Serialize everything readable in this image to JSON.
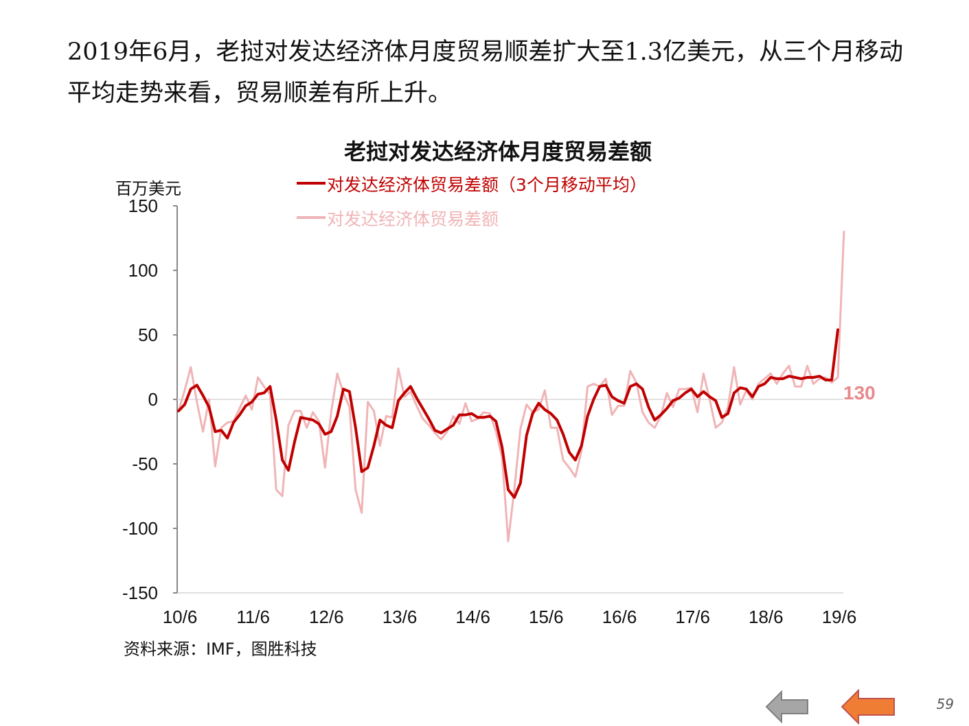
{
  "headline": "2019年6月，老挝对发达经济体月度贸易顺差扩大至1.3亿美元，从三个月移动平均走势来看，贸易顺差有所上升。",
  "chart_data": {
    "type": "line",
    "title": "老挝对发达经济体月度贸易差额",
    "ylabel": "百万美元",
    "ylim": [
      -150,
      150
    ],
    "yticks": [
      150,
      100,
      50,
      0,
      -50,
      -100,
      -150
    ],
    "xtick_labels": [
      "10/6",
      "11/6",
      "12/6",
      "13/6",
      "14/6",
      "15/6",
      "16/6",
      "17/6",
      "18/6",
      "19/6"
    ],
    "grid": false,
    "legend_position": "top-center",
    "end_annotation": "130",
    "series": [
      {
        "name": "对发达经济体贸易差额（3个月移动平均）",
        "color": "#c00000",
        "values": [
          -9,
          -4,
          8,
          11,
          3,
          -6,
          -25,
          -24,
          -30,
          -18,
          -12,
          -5,
          -2,
          4,
          5,
          10,
          -16,
          -47,
          -55,
          -33,
          -14,
          -15,
          -16,
          -19,
          -27,
          -25,
          -13,
          8,
          6,
          -22,
          -56,
          -53,
          -36,
          -16,
          -20,
          -22,
          -1,
          5,
          10,
          1,
          -7,
          -15,
          -24,
          -26,
          -23,
          -20,
          -12,
          -12,
          -11,
          -14,
          -14,
          -13,
          -17,
          -37,
          -70,
          -76,
          -65,
          -28,
          -11,
          -3,
          -8,
          -11,
          -16,
          -27,
          -41,
          -47,
          -36,
          -13,
          0,
          10,
          11,
          2,
          -1,
          -3,
          10,
          12,
          8,
          -6,
          -16,
          -12,
          -7,
          -1,
          1,
          5,
          8,
          2,
          6,
          2,
          -1,
          -14,
          -11,
          5,
          9,
          8,
          2,
          10,
          12,
          17,
          16,
          16,
          18,
          17,
          16,
          17,
          17,
          18,
          15,
          15,
          54
        ]
      },
      {
        "name": "对发达经济体贸易差额",
        "color": "#f0b4b6",
        "values": [
          -9,
          7,
          25,
          -2,
          -25,
          0,
          -52,
          -22,
          -18,
          -17,
          -7,
          3,
          -8,
          17,
          10,
          4,
          -70,
          -75,
          -20,
          -9,
          -9,
          -22,
          -10,
          -17,
          -53,
          -10,
          20,
          5,
          -6,
          -70,
          -88,
          -2,
          -9,
          -36,
          -13,
          -14,
          24,
          2,
          6,
          -5,
          -15,
          -20,
          -26,
          -31,
          -25,
          -13,
          -19,
          -3,
          -17,
          -15,
          -10,
          -11,
          -25,
          -45,
          -110,
          -70,
          -23,
          -4,
          -10,
          -8,
          7,
          -22,
          -22,
          -47,
          -53,
          -60,
          -40,
          10,
          12,
          10,
          16,
          -12,
          -5,
          -5,
          22,
          13,
          -10,
          -18,
          -22,
          -13,
          5,
          -6,
          8,
          8,
          9,
          -10,
          20,
          0,
          -22,
          -18,
          -6,
          25,
          -4,
          7,
          0,
          12,
          16,
          20,
          12,
          20,
          26,
          10,
          10,
          26,
          12,
          16,
          17,
          13,
          17,
          130
        ]
      }
    ]
  },
  "source": "资料来源：IMF，图胜科技",
  "page_number": "59",
  "nav": {
    "prev_color": "#a6a6a6",
    "next_color": "#f07d34"
  }
}
